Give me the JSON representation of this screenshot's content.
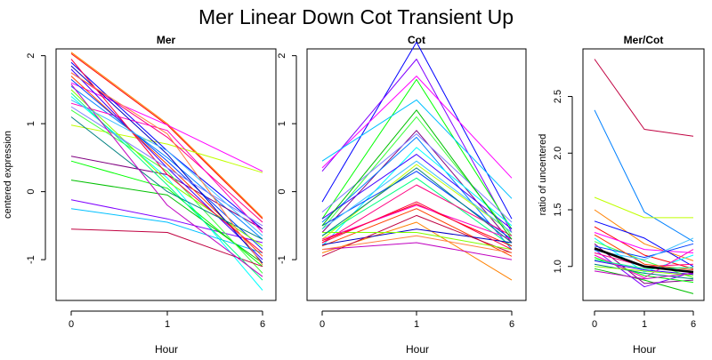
{
  "title": "Mer Linear Down Cot Transient Up",
  "chart_data": [
    {
      "type": "line",
      "title": "Mer",
      "xlabel": "Hour",
      "ylabel": "centered expression",
      "x_categories": [
        "0",
        "1",
        "6"
      ],
      "ylim": [
        -1.6,
        2.1
      ],
      "yticks": [
        "-1",
        "0",
        "1",
        "2"
      ],
      "series": [
        {
          "color": "#ff0000",
          "values": [
            2.03,
            0.98,
            -0.4
          ]
        },
        {
          "color": "#ff8000",
          "values": [
            2.05,
            1.0,
            -0.38
          ]
        },
        {
          "color": "#ff00ff",
          "values": [
            1.6,
            0.98,
            0.3
          ]
        },
        {
          "color": "#c0ff00",
          "values": [
            0.98,
            0.7,
            0.28
          ]
        },
        {
          "color": "#ff0080",
          "values": [
            1.75,
            0.8,
            -0.45
          ]
        },
        {
          "color": "#0000ff",
          "values": [
            1.9,
            0.6,
            -0.55
          ]
        },
        {
          "color": "#0080ff",
          "values": [
            1.55,
            0.5,
            -0.7
          ]
        },
        {
          "color": "#00ffff",
          "values": [
            1.4,
            0.2,
            -1.45
          ]
        },
        {
          "color": "#00c0ff",
          "values": [
            -0.25,
            -0.45,
            -0.9
          ]
        },
        {
          "color": "#800080",
          "values": [
            0.52,
            0.25,
            -0.55
          ]
        },
        {
          "color": "#8000ff",
          "values": [
            -0.12,
            -0.4,
            -0.75
          ]
        },
        {
          "color": "#00ff00",
          "values": [
            0.45,
            0.05,
            -1.1
          ]
        },
        {
          "color": "#00c000",
          "values": [
            0.17,
            -0.05,
            -1.05
          ]
        },
        {
          "color": "#40ff40",
          "values": [
            1.2,
            0.3,
            -1.2
          ]
        },
        {
          "color": "#4000ff",
          "values": [
            1.8,
            0.35,
            -1.0
          ]
        },
        {
          "color": "#ff4000",
          "values": [
            1.7,
            0.4,
            -0.95
          ]
        },
        {
          "color": "#c00040",
          "values": [
            -0.55,
            -0.6,
            -1.1
          ]
        },
        {
          "color": "#ff00c0",
          "values": [
            1.3,
            0.9,
            -0.6
          ]
        },
        {
          "color": "#0040ff",
          "values": [
            1.65,
            0.45,
            -0.85
          ]
        },
        {
          "color": "#80ff00",
          "values": [
            1.5,
            0.15,
            -0.8
          ]
        },
        {
          "color": "#00ff80",
          "values": [
            1.45,
            0.1,
            -1.3
          ]
        },
        {
          "color": "#0000c0",
          "values": [
            1.85,
            0.55,
            -1.05
          ]
        },
        {
          "color": "#ff0040",
          "values": [
            1.95,
            0.25,
            -0.9
          ]
        },
        {
          "color": "#8080ff",
          "values": [
            1.25,
            0.35,
            -0.5
          ]
        },
        {
          "color": "#008080",
          "values": [
            1.1,
            0.0,
            -0.7
          ]
        },
        {
          "color": "#c000c0",
          "values": [
            1.58,
            -0.2,
            -1.25
          ]
        },
        {
          "color": "#40c0ff",
          "values": [
            1.35,
            0.6,
            -0.65
          ]
        },
        {
          "color": "#ff8040",
          "values": [
            1.75,
            0.85,
            -1.08
          ]
        }
      ]
    },
    {
      "type": "line",
      "title": "Cot",
      "xlabel": "Hour",
      "ylabel": "",
      "x_categories": [
        "0",
        "1",
        "6"
      ],
      "ylim": [
        -1.6,
        2.1
      ],
      "yticks": [
        "-1",
        "0",
        "1",
        "2"
      ],
      "series": [
        {
          "color": "#0000ff",
          "values": [
            -0.15,
            2.2,
            -0.4
          ]
        },
        {
          "color": "#8000ff",
          "values": [
            0.3,
            1.95,
            -0.6
          ]
        },
        {
          "color": "#ff00ff",
          "values": [
            0.35,
            1.7,
            0.2
          ]
        },
        {
          "color": "#00ff00",
          "values": [
            -0.4,
            1.65,
            -0.55
          ]
        },
        {
          "color": "#00c0ff",
          "values": [
            0.45,
            1.35,
            -0.1
          ]
        },
        {
          "color": "#40ff40",
          "values": [
            -0.55,
            1.1,
            -0.65
          ]
        },
        {
          "color": "#800080",
          "values": [
            -0.6,
            0.9,
            -0.75
          ]
        },
        {
          "color": "#0080ff",
          "values": [
            -0.45,
            0.8,
            -0.85
          ]
        },
        {
          "color": "#00ffff",
          "values": [
            -0.8,
            0.65,
            -0.5
          ]
        },
        {
          "color": "#c0ff00",
          "values": [
            -0.7,
            0.4,
            -0.6
          ]
        },
        {
          "color": "#0040ff",
          "values": [
            -0.5,
            0.3,
            -0.7
          ]
        },
        {
          "color": "#00ff80",
          "values": [
            -0.65,
            0.2,
            -0.8
          ]
        },
        {
          "color": "#ff0080",
          "values": [
            -0.75,
            0.1,
            -0.65
          ]
        },
        {
          "color": "#ff0000",
          "values": [
            -0.72,
            -0.18,
            -0.8
          ]
        },
        {
          "color": "#ff4000",
          "values": [
            -0.8,
            -0.25,
            -0.95
          ]
        },
        {
          "color": "#ff8000",
          "values": [
            -0.9,
            -0.45,
            -1.3
          ]
        },
        {
          "color": "#0000c0",
          "values": [
            -0.78,
            -0.55,
            -0.75
          ]
        },
        {
          "color": "#c000c0",
          "values": [
            -0.85,
            -0.75,
            -1.0
          ]
        },
        {
          "color": "#c00040",
          "values": [
            -0.95,
            -0.35,
            -0.9
          ]
        },
        {
          "color": "#80ff00",
          "values": [
            -0.6,
            -0.6,
            -0.85
          ]
        },
        {
          "color": "#ff00c0",
          "values": [
            -0.7,
            -0.2,
            -0.7
          ]
        },
        {
          "color": "#4000ff",
          "values": [
            -0.4,
            0.55,
            -0.55
          ]
        },
        {
          "color": "#40c0ff",
          "values": [
            -0.55,
            0.45,
            -0.6
          ]
        },
        {
          "color": "#008080",
          "values": [
            -0.65,
            0.35,
            -0.75
          ]
        },
        {
          "color": "#8080ff",
          "values": [
            -0.3,
            0.85,
            -0.45
          ]
        },
        {
          "color": "#ff8040",
          "values": [
            -0.85,
            -0.65,
            -0.9
          ]
        },
        {
          "color": "#00c000",
          "values": [
            -0.5,
            1.2,
            -0.7
          ]
        },
        {
          "color": "#ff0040",
          "values": [
            -0.75,
            -0.15,
            -0.85
          ]
        }
      ]
    },
    {
      "type": "line",
      "title": "Mer/Cot",
      "xlabel": "Hour",
      "ylabel": "ratio of uncentered",
      "x_categories": [
        "0",
        "1",
        "6"
      ],
      "ylim": [
        0.7,
        2.92
      ],
      "yticks": [
        "1.0",
        "1.5",
        "2.0",
        "2.5"
      ],
      "series": [
        {
          "color": "#c00040",
          "values": [
            2.83,
            2.21,
            2.15
          ]
        },
        {
          "color": "#0080ff",
          "values": [
            2.38,
            1.48,
            1.22
          ]
        },
        {
          "color": "#c0ff00",
          "values": [
            1.61,
            1.43,
            1.43
          ]
        },
        {
          "color": "#ff8000",
          "values": [
            1.5,
            1.2,
            1.05
          ]
        },
        {
          "color": "#0000ff",
          "values": [
            1.4,
            1.25,
            1.0
          ]
        },
        {
          "color": "#ff0000",
          "values": [
            1.35,
            1.1,
            0.98
          ]
        },
        {
          "color": "#ff00ff",
          "values": [
            1.3,
            1.15,
            1.12
          ]
        },
        {
          "color": "#00ffff",
          "values": [
            1.25,
            0.95,
            1.1
          ]
        },
        {
          "color": "#00c000",
          "values": [
            0.98,
            0.88,
            0.76
          ]
        },
        {
          "color": "#800080",
          "values": [
            1.2,
            0.85,
            0.88
          ]
        },
        {
          "color": "#8000ff",
          "values": [
            1.15,
            0.82,
            0.95
          ]
        },
        {
          "color": "#00ff00",
          "values": [
            1.08,
            0.92,
            0.86
          ]
        },
        {
          "color": "#ff0080",
          "values": [
            1.12,
            1.0,
            1.02
          ]
        },
        {
          "color": "#4000ff",
          "values": [
            1.05,
            0.97,
            0.93
          ]
        },
        {
          "color": "#40ff40",
          "values": [
            1.22,
            1.05,
            0.9
          ]
        },
        {
          "color": "#0040ff",
          "values": [
            1.18,
            1.08,
            1.2
          ]
        },
        {
          "color": "#ff00c0",
          "values": [
            1.1,
            0.9,
            1.15
          ]
        },
        {
          "color": "#008080",
          "values": [
            1.02,
            0.94,
            0.89
          ]
        },
        {
          "color": "#ff4000",
          "values": [
            1.28,
            1.02,
            0.97
          ]
        },
        {
          "color": "#80ff00",
          "values": [
            1.0,
            0.96,
            0.92
          ]
        },
        {
          "color": "#40c0ff",
          "values": [
            1.14,
            1.06,
            1.25
          ]
        },
        {
          "color": "#c000c0",
          "values": [
            0.96,
            0.89,
            0.94
          ]
        },
        {
          "color": "#00ff80",
          "values": [
            1.06,
            0.98,
            0.99
          ]
        },
        {
          "color": "#000000",
          "values": [
            1.16,
            1.0,
            0.95
          ],
          "width": 2.6
        }
      ]
    }
  ]
}
